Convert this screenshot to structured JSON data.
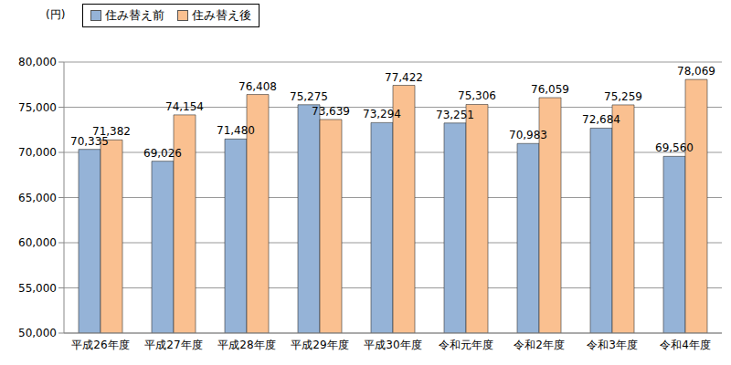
{
  "chart_data": {
    "type": "bar",
    "y_label": "(円)",
    "categories": [
      "平成26年度",
      "平成27年度",
      "平成28年度",
      "平成29年度",
      "平成30年度",
      "令和元年度",
      "令和2年度",
      "令和3年度",
      "令和4年度"
    ],
    "series": [
      {
        "name": "住み替え前",
        "color": "#95b3d7",
        "values": [
          70335,
          69026,
          71480,
          75275,
          73294,
          73251,
          70983,
          72684,
          69560
        ],
        "value_labels": [
          "70,335",
          "69,026",
          "71,480",
          "75,275",
          "73,294",
          "73,251",
          "70,983",
          "72,684",
          "69,560"
        ]
      },
      {
        "name": "住み替え後",
        "color": "#fac090",
        "values": [
          71382,
          74154,
          76408,
          73639,
          77422,
          75306,
          76059,
          75259,
          78069
        ],
        "value_labels": [
          "71,382",
          "74,154",
          "76,408",
          "73,639",
          "77,422",
          "75,306",
          "76,059",
          "75,259",
          "78,069"
        ]
      }
    ],
    "ylim": [
      50000,
      80000
    ],
    "yticks": [
      {
        "value": 50000,
        "label": "50,000"
      },
      {
        "value": 55000,
        "label": "55,000"
      },
      {
        "value": 60000,
        "label": "60,000"
      },
      {
        "value": 65000,
        "label": "65,000"
      },
      {
        "value": 70000,
        "label": "70,000"
      },
      {
        "value": 75000,
        "label": "75,000"
      },
      {
        "value": 80000,
        "label": "80,000"
      }
    ],
    "grid": true,
    "legend": "upper left",
    "data_labels": true
  }
}
